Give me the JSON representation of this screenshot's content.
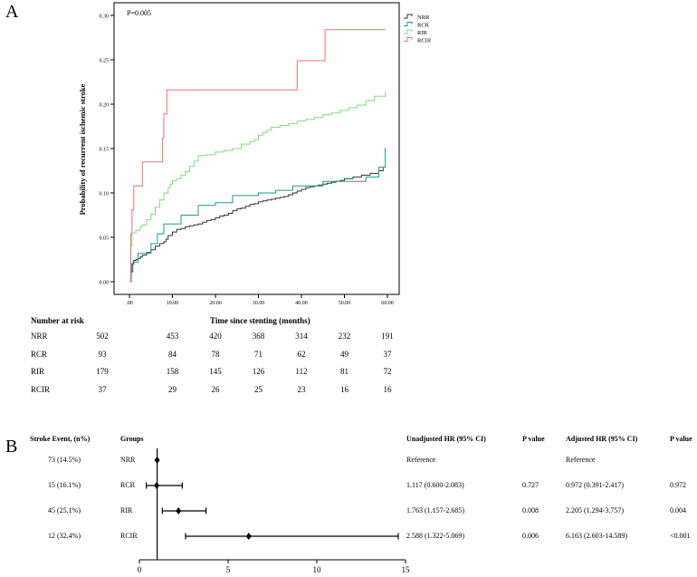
{
  "panels": {
    "a_label": "A",
    "b_label": "B"
  },
  "chart_data": [
    {
      "type": "line",
      "subtype": "kaplan-meier cumulative incidence (step)",
      "title": "",
      "annotation": "P=0.005",
      "xlabel": "Time since stenting (months)",
      "ylabel": "Probability of recurrent ischemic stroke",
      "xlim": [
        0,
        60
      ],
      "ylim": [
        0,
        0.3
      ],
      "x_ticks": [
        ".00",
        "10.00",
        "20.00",
        "30.00",
        "40.00",
        "50.00",
        "60.00"
      ],
      "y_ticks": [
        "0.00",
        "0.05",
        "0.10",
        "0.15",
        "0.20",
        "0.25",
        "0.30"
      ],
      "legend": [
        "NRR",
        "RCR",
        "RIR",
        "RCIR"
      ],
      "legend_position": "top-right",
      "series": [
        {
          "name": "NRR",
          "color": "#333333",
          "x": [
            0,
            0.4,
            0.6,
            1.0,
            1.5,
            2.0,
            2.5,
            3.0,
            4.0,
            5.0,
            6.0,
            7.0,
            8.0,
            8.5,
            9.0,
            10.0,
            11.0,
            12.0,
            13.0,
            14.0,
            15.0,
            16.0,
            17.0,
            18.0,
            19.0,
            20.0,
            21.0,
            22.0,
            23.0,
            24.0,
            25.0,
            26.0,
            27.0,
            28.0,
            29.0,
            30.0,
            31.0,
            32.0,
            33.0,
            34.0,
            35.0,
            36.0,
            37.0,
            38.0,
            39.0,
            40.0,
            41.0,
            42.0,
            43.0,
            44.0,
            45.0,
            46.0,
            47.0,
            48.0,
            49.0,
            50.0,
            52.0,
            54.0,
            56.0,
            58.0,
            59.0
          ],
          "y": [
            0.0,
            0.012,
            0.02,
            0.024,
            0.025,
            0.026,
            0.028,
            0.03,
            0.033,
            0.036,
            0.04,
            0.043,
            0.045,
            0.048,
            0.052,
            0.056,
            0.059,
            0.06,
            0.062,
            0.063,
            0.064,
            0.065,
            0.067,
            0.069,
            0.07,
            0.072,
            0.074,
            0.075,
            0.077,
            0.08,
            0.082,
            0.083,
            0.085,
            0.087,
            0.088,
            0.09,
            0.091,
            0.092,
            0.093,
            0.094,
            0.095,
            0.096,
            0.098,
            0.1,
            0.102,
            0.104,
            0.106,
            0.107,
            0.108,
            0.109,
            0.11,
            0.111,
            0.112,
            0.113,
            0.114,
            0.116,
            0.118,
            0.12,
            0.122,
            0.125,
            0.129
          ]
        },
        {
          "name": "RCR",
          "color": "#1a9d8f",
          "x": [
            0,
            0.3,
            0.8,
            2.0,
            5.0,
            6.5,
            8.0,
            12.0,
            16.0,
            20.0,
            24.0,
            30.0,
            34.0,
            38.0,
            45.0,
            55.0,
            58.0,
            59.5
          ],
          "y": [
            0.0,
            0.011,
            0.022,
            0.032,
            0.043,
            0.054,
            0.065,
            0.075,
            0.086,
            0.089,
            0.097,
            0.1,
            0.103,
            0.108,
            0.113,
            0.118,
            0.129,
            0.151
          ]
        },
        {
          "name": "RIR",
          "color": "#7fdc7f",
          "x": [
            0,
            0.3,
            0.6,
            1.5,
            2.5,
            3.0,
            4.0,
            5.0,
            6.0,
            7.0,
            8.0,
            9.0,
            9.5,
            10.0,
            11.0,
            12.0,
            13.0,
            14.0,
            15.0,
            16.0,
            18.0,
            20.0,
            22.0,
            24.0,
            26.0,
            28.0,
            29.0,
            30.0,
            31.0,
            32.0,
            33.0,
            35.0,
            37.0,
            39.0,
            41.0,
            43.0,
            45.0,
            47.0,
            49.0,
            51.0,
            53.0,
            55.0,
            57.0,
            59.5
          ],
          "y": [
            0.0,
            0.04,
            0.055,
            0.058,
            0.062,
            0.064,
            0.07,
            0.076,
            0.084,
            0.092,
            0.1,
            0.106,
            0.11,
            0.114,
            0.116,
            0.12,
            0.124,
            0.13,
            0.136,
            0.142,
            0.143,
            0.146,
            0.148,
            0.15,
            0.155,
            0.158,
            0.16,
            0.165,
            0.168,
            0.171,
            0.174,
            0.176,
            0.178,
            0.181,
            0.183,
            0.185,
            0.188,
            0.19,
            0.193,
            0.196,
            0.199,
            0.204,
            0.209,
            0.214
          ]
        },
        {
          "name": "RCIR",
          "color": "#f07070",
          "x": [
            0,
            0.3,
            0.6,
            1.0,
            3.0,
            6.5,
            7.7,
            8.0,
            8.7,
            39.0,
            45.5,
            59.5
          ],
          "y": [
            0.0,
            0.054,
            0.081,
            0.108,
            0.135,
            0.135,
            0.162,
            0.189,
            0.216,
            0.249,
            0.284,
            0.284
          ]
        }
      ],
      "risk_table": {
        "header": "Number at risk",
        "rows": [
          {
            "group": "NRR",
            "values": [
              "502",
              "453",
              "420",
              "368",
              "314",
              "232",
              "191"
            ]
          },
          {
            "group": "RCR",
            "values": [
              "93",
              "84",
              "78",
              "71",
              "62",
              "49",
              "37"
            ]
          },
          {
            "group": "RIR",
            "values": [
              "179",
              "158",
              "145",
              "126",
              "112",
              "81",
              "72"
            ]
          },
          {
            "group": "RCIR",
            "values": [
              "37",
              "29",
              "26",
              "25",
              "23",
              "16",
              "16"
            ]
          }
        ]
      }
    },
    {
      "type": "forest",
      "title": "",
      "x_ticks": [
        "0",
        "5",
        "10",
        "15"
      ],
      "xlim": [
        0,
        15
      ],
      "reference_line": 1,
      "headers": {
        "events": "Stroke Event, (n%)",
        "groups": "Groups",
        "unadjusted": "Unadjusted HR (95% CI)",
        "p_unadjusted": "P value",
        "adjusted": "Adjusted HR  (95% CI)",
        "p_adjusted": "P value"
      },
      "rows": [
        {
          "events": "73 (14.5%)",
          "group": "NRR",
          "hr": 1.0,
          "lo": 1.0,
          "hi": 1.0,
          "unadjusted": "Reference",
          "p_unadjusted": "",
          "adjusted": "Reference",
          "p_adjusted": ""
        },
        {
          "events": "15 (16.1%)",
          "group": "RCR",
          "hr": 0.972,
          "lo": 0.391,
          "hi": 2.417,
          "unadjusted": "1.117 (0.600-2.083)",
          "p_unadjusted": "0.727",
          "adjusted": "0.972 (0.391-2.417)",
          "p_adjusted": "0.972"
        },
        {
          "events": "45 (25.1%)",
          "group": "RIR",
          "hr": 2.205,
          "lo": 1.294,
          "hi": 3.757,
          "unadjusted": "1.763 (1.157-2.685)",
          "p_unadjusted": "0.008",
          "adjusted": "2.205 (1.294-3.757)",
          "p_adjusted": "0.004"
        },
        {
          "events": "12 (32.4%)",
          "group": "RCIR",
          "hr": 6.163,
          "lo": 2.603,
          "hi": 14.589,
          "unadjusted": "2.588 (1.322-5.069)",
          "p_unadjusted": "0.006",
          "adjusted": "6.163 (2.603-14.589)",
          "p_adjusted": "<0.001"
        }
      ]
    }
  ]
}
